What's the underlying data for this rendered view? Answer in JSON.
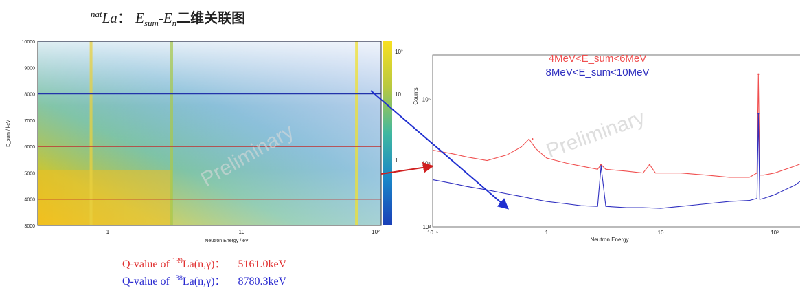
{
  "title": {
    "sup": "nat",
    "element": "La",
    "colon": "：",
    "e_sum": "E",
    "e_sum_sub": "sum",
    "dash": "-",
    "e_n": "E",
    "e_n_sub": "n",
    "cn": "二维关联图"
  },
  "chart_data": [
    {
      "type": "heatmap",
      "xlabel": "Neutron Energy / eV",
      "ylabel": "E_sum / keV",
      "x_scale": "log",
      "xlim": [
        0.3,
        110
      ],
      "ylim": [
        3000,
        10000
      ],
      "x_ticks": [
        "1",
        "10",
        "10²"
      ],
      "y_ticks": [
        "3000",
        "4000",
        "5000",
        "6000",
        "7000",
        "8000",
        "9000",
        "10000"
      ],
      "z_scale": "log",
      "colorbar_ticks": [
        "1",
        "10",
        "10²"
      ],
      "watermark": "Preliminary",
      "gate_lines_keV": [
        {
          "value": 4000,
          "color": "#c03030"
        },
        {
          "value": 6000,
          "color": "#c03030"
        },
        {
          "value": 8000,
          "color": "#2233aa"
        },
        {
          "value": 10000,
          "color": "#2233aa"
        }
      ],
      "resonance_lines_eV": [
        0.75,
        3.0,
        72
      ]
    },
    {
      "type": "line",
      "xlabel": "Neutron Energy",
      "ylabel": "Counts",
      "x_scale": "log",
      "y_scale": "log",
      "xlim": [
        0.1,
        200
      ],
      "ylim": [
        1000,
        500000
      ],
      "x_ticks": [
        "10⁻¹",
        "1",
        "10",
        "10²"
      ],
      "y_ticks": [
        "10³",
        "10⁴",
        "10⁵"
      ],
      "watermark": "Preliminary",
      "series": [
        {
          "name": "4MeV<E_sum<6MeV",
          "color": "#f05050",
          "points": [
            [
              0.1,
              16000
            ],
            [
              0.15,
              14000
            ],
            [
              0.2,
              12500
            ],
            [
              0.3,
              11000
            ],
            [
              0.45,
              13500
            ],
            [
              0.6,
              18000
            ],
            [
              0.7,
              24000
            ],
            [
              0.8,
              17000
            ],
            [
              1.0,
              12000
            ],
            [
              1.5,
              10000
            ],
            [
              2.0,
              9000
            ],
            [
              2.8,
              8000
            ],
            [
              3.0,
              9500
            ],
            [
              3.3,
              8000
            ],
            [
              5,
              7500
            ],
            [
              7,
              7000
            ],
            [
              8,
              9500
            ],
            [
              9,
              7000
            ],
            [
              15,
              7000
            ],
            [
              25,
              6500
            ],
            [
              40,
              6000
            ],
            [
              60,
              6000
            ],
            [
              70,
              7000
            ],
            [
              72,
              250000
            ],
            [
              74,
              6500
            ],
            [
              80,
              6500
            ],
            [
              100,
              7000
            ],
            [
              150,
              9000
            ],
            [
              200,
              11000
            ]
          ]
        },
        {
          "name": "8MeV<E_sum<10MeV",
          "color": "#3030c0",
          "points": [
            [
              0.1,
              5500
            ],
            [
              0.15,
              4800
            ],
            [
              0.2,
              4300
            ],
            [
              0.3,
              3800
            ],
            [
              0.45,
              3300
            ],
            [
              0.6,
              3000
            ],
            [
              0.8,
              2700
            ],
            [
              1.0,
              2500
            ],
            [
              1.5,
              2300
            ],
            [
              2.0,
              2150
            ],
            [
              2.8,
              2100
            ],
            [
              3.0,
              9000
            ],
            [
              3.3,
              2100
            ],
            [
              5,
              2000
            ],
            [
              7,
              2000
            ],
            [
              10,
              1950
            ],
            [
              15,
              2100
            ],
            [
              25,
              2300
            ],
            [
              40,
              2500
            ],
            [
              60,
              2600
            ],
            [
              70,
              2800
            ],
            [
              72,
              60000
            ],
            [
              74,
              2700
            ],
            [
              80,
              2800
            ],
            [
              100,
              3200
            ],
            [
              150,
              4500
            ],
            [
              200,
              6500
            ]
          ]
        }
      ],
      "peaks": [
        {
          "x": 0.75,
          "series": 0,
          "y": 24000
        },
        {
          "x": 3.0,
          "series": 0,
          "y": 9500
        },
        {
          "x": 3.0,
          "series": 1,
          "y": 9000
        },
        {
          "x": 8,
          "series": 0,
          "y": 9500
        },
        {
          "x": 72,
          "series": 0,
          "y": 250000
        },
        {
          "x": 72,
          "series": 1,
          "y": 60000
        }
      ]
    }
  ],
  "qvalues": [
    {
      "prefix": "Q-value of ",
      "mass": "139",
      "reaction": "La(n,γ)：",
      "value": "5161.0keV",
      "color": "#e03030"
    },
    {
      "prefix": "Q-value of ",
      "mass": "138",
      "reaction": "La(n,γ)：",
      "value": "8780.3keV",
      "color": "#2a2ad0"
    }
  ],
  "colors": {
    "arrow_red": "#d02020",
    "arrow_blue": "#2030d0"
  }
}
